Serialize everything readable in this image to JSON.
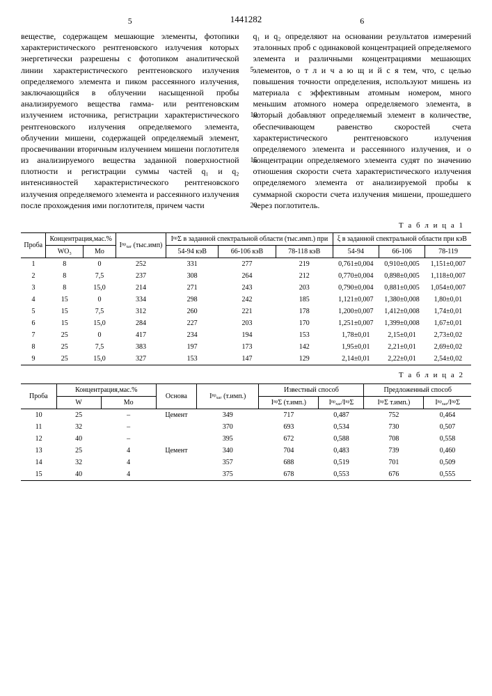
{
  "doc_number": "1441282",
  "page_left": "5",
  "page_right": "6",
  "col_left": "веществе, содержащем мешающие элементы, фотопики характеристического рентгеновского излучения которых энергетически разрешены с фотопиком аналитической линии характеристического рентгеновского излучения определяемого элемента и пиком рассеянного излучения, заключающийся в облучении насыщенной пробы анализируемого вещества гамма- или рентгеновским излучением источника, регистрации характеристического рентгеновского излучения определяемого элемента, облучении мишени, содержащей определяемый элемент, просвечивании вторичным излучением мишени поглотителя из анализируемого вещества заданной поверхностной плотности и регистрации суммы частей q₁ и q₂ интенсивностей характеристического рентгеновского излучения определяемого элемента и рассеянного излучения после прохождения ими поглотителя, причем части",
  "col_right": "q₁ и q₂ определяют на основании результатов измерений эталонных проб с одинаковой концентрацией определяемого элемента и различными концентрациями мешающих элементов, о т л и ч а ю щ и й с я тем, что, с целью повышения точности определения, используют мишень из материала с эффективным атомным номером, много меньшим атомного номера определяемого элемента, в который добавляют определяемый элемент в количестве, обеспечивающем равенство скоростей счета характеристического рентгеновского излучения определяемого элемента и рассеянного излучения, и о концентрации определяемого элемента судят по значению отношения скорости счета характеристического излучения определяемого элемента от анализируемой пробы к суммарной скорости счета излучения мишени, прошедшего через поглотитель.",
  "markers": {
    "m5": "5",
    "m10": "10",
    "m15": "15",
    "m20": "20"
  },
  "table1": {
    "label": "Т а б л и ц а 1",
    "head": {
      "proba": "Проба",
      "konc": "Концентрация,мас.%",
      "wo3": "WO₃",
      "mo": "Mo",
      "ixar": "Iⁿᵖₓₐᵣ (тыс.имп)",
      "isum": "IⁿᵖΣ в заданной спектральной области (тыс.имп.) при",
      "r1": "54-94 кэВ",
      "r2": "66-106 кэВ",
      "r3": "78-118 кэВ",
      "eta": "ξ в заданной спектральной области при кэВ",
      "e1": "54-94",
      "e2": "66-106",
      "e3": "78-119"
    },
    "rows": [
      {
        "n": "1",
        "wo3": "8",
        "mo": "0",
        "ixar": "252",
        "c1": "331",
        "c2": "277",
        "c3": "219",
        "e1": "0,761±0,004",
        "e2": "0,910±0,005",
        "e3": "1,151±0,007"
      },
      {
        "n": "2",
        "wo3": "8",
        "mo": "7,5",
        "ixar": "237",
        "c1": "308",
        "c2": "264",
        "c3": "212",
        "e1": "0,770±0,004",
        "e2": "0,898±0,005",
        "e3": "1,118±0,007"
      },
      {
        "n": "3",
        "wo3": "8",
        "mo": "15,0",
        "ixar": "214",
        "c1": "271",
        "c2": "243",
        "c3": "203",
        "e1": "0,790±0,004",
        "e2": "0,881±0,005",
        "e3": "1,054±0,007"
      },
      {
        "n": "4",
        "wo3": "15",
        "mo": "0",
        "ixar": "334",
        "c1": "298",
        "c2": "242",
        "c3": "185",
        "e1": "1,121±0,007",
        "e2": "1,380±0,008",
        "e3": "1,80±0,01"
      },
      {
        "n": "5",
        "wo3": "15",
        "mo": "7,5",
        "ixar": "312",
        "c1": "260",
        "c2": "221",
        "c3": "178",
        "e1": "1,200±0,007",
        "e2": "1,412±0,008",
        "e3": "1,74±0,01"
      },
      {
        "n": "6",
        "wo3": "15",
        "mo": "15,0",
        "ixar": "284",
        "c1": "227",
        "c2": "203",
        "c3": "170",
        "e1": "1,251±0,007",
        "e2": "1,399±0,008",
        "e3": "1,67±0,01"
      },
      {
        "n": "7",
        "wo3": "25",
        "mo": "0",
        "ixar": "417",
        "c1": "234",
        "c2": "194",
        "c3": "153",
        "e1": "1,78±0,01",
        "e2": "2,15±0,01",
        "e3": "2,73±0,02"
      },
      {
        "n": "8",
        "wo3": "25",
        "mo": "7,5",
        "ixar": "383",
        "c1": "197",
        "c2": "173",
        "c3": "142",
        "e1": "1,95±0,01",
        "e2": "2,21±0,01",
        "e3": "2,69±0,02"
      },
      {
        "n": "9",
        "wo3": "25",
        "mo": "15,0",
        "ixar": "327",
        "c1": "153",
        "c2": "147",
        "c3": "129",
        "e1": "2,14±0,01",
        "e2": "2,22±0,01",
        "e3": "2,54±0,02"
      }
    ]
  },
  "table2": {
    "label": "Т а б л и ц а 2",
    "head": {
      "proba": "Проба",
      "konc": "Концентрация,мас.%",
      "w": "W",
      "mo": "Mo",
      "osnova": "Основа",
      "ixar": "Iⁿᵖₓₐᵣ (т.имп.)",
      "izv": "Известный способ",
      "pred": "Предложенный способ",
      "isum1": "IⁿᵖΣ (т.имп.)",
      "ratio1": "Iⁿᵖₓₐᵣ/IⁿᵖΣ",
      "isum2": "IⁿᵖΣ т.имп.)",
      "ratio2": "Iⁿᵖₓₐᵣ/IⁿᵖΣ"
    },
    "rows": [
      {
        "n": "10",
        "w": "25",
        "mo": "–",
        "osn": "Цемент",
        "ixar": "349",
        "s1": "717",
        "r1": "0,487",
        "s2": "752",
        "r2": "0,464"
      },
      {
        "n": "11",
        "w": "32",
        "mo": "–",
        "osn": "",
        "ixar": "370",
        "s1": "693",
        "r1": "0,534",
        "s2": "730",
        "r2": "0,507"
      },
      {
        "n": "12",
        "w": "40",
        "mo": "–",
        "osn": "",
        "ixar": "395",
        "s1": "672",
        "r1": "0,588",
        "s2": "708",
        "r2": "0,558"
      },
      {
        "n": "13",
        "w": "25",
        "mo": "4",
        "osn": "Цемент",
        "ixar": "340",
        "s1": "704",
        "r1": "0,483",
        "s2": "739",
        "r2": "0,460"
      },
      {
        "n": "14",
        "w": "32",
        "mo": "4",
        "osn": "",
        "ixar": "357",
        "s1": "688",
        "r1": "0,519",
        "s2": "701",
        "r2": "0,509"
      },
      {
        "n": "15",
        "w": "40",
        "mo": "4",
        "osn": "",
        "ixar": "375",
        "s1": "678",
        "r1": "0,553",
        "s2": "676",
        "r2": "0,555"
      }
    ]
  }
}
